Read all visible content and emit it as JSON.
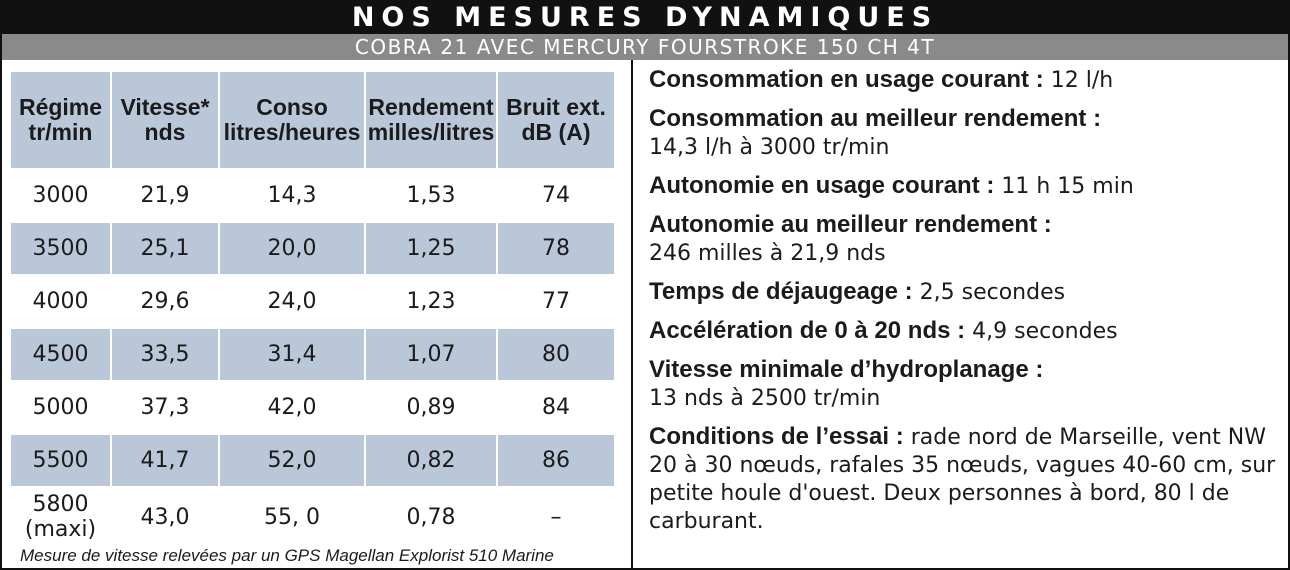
{
  "header": {
    "title": "NOS MESURES DYNAMIQUES",
    "subtitle": "COBRA 21 AVEC MERCURY FOURSTROKE 150 CH 4T"
  },
  "table": {
    "columns": [
      [
        "Régime",
        "tr/min"
      ],
      [
        "Vitesse*",
        "nds"
      ],
      [
        "Conso",
        "litres/heures"
      ],
      [
        "Rendement",
        "milles/litres"
      ],
      [
        "Bruit ext.",
        "dB (A)"
      ]
    ],
    "rows": [
      [
        "3000",
        "21,9",
        "14,3",
        "1,53",
        "74"
      ],
      [
        "3500",
        "25,1",
        "20,0",
        "1,25",
        "78"
      ],
      [
        "4000",
        "29,6",
        "24,0",
        "1,23",
        "77"
      ],
      [
        "4500",
        "33,5",
        "31,4",
        "1,07",
        "80"
      ],
      [
        "5000",
        "37,3",
        "42,0",
        "0,89",
        "84"
      ],
      [
        "5500",
        "41,7",
        "52,0",
        "0,82",
        "86"
      ]
    ],
    "last_row": {
      "regime_line1": "5800",
      "regime_line2": "(maxi)",
      "cells": [
        "43,0",
        "55, 0",
        "0,78",
        "–"
      ]
    },
    "footnote": "Mesure de vitesse relevées par un GPS Magellan Explorist 510 Marine",
    "shade_color": "#b9c7d9"
  },
  "stats": [
    {
      "label": "Consommation en usage courant :",
      "value": "12 l/h"
    },
    {
      "label": "Consommation au meilleur rendement :",
      "value": "14,3 l/h à 3000 tr/min"
    },
    {
      "label": "Autonomie en usage courant :",
      "value": "11 h 15 min"
    },
    {
      "label": "Autonomie au meilleur rendement :",
      "value": "246 milles à 21,9 nds"
    },
    {
      "label": "Temps de déjaugeage :",
      "value": "2,5 secondes"
    },
    {
      "label": "Accélération de 0 à 20 nds :",
      "value": "4,9 secondes"
    },
    {
      "label": "Vitesse minimale d’hydroplanage :",
      "value": "13 nds à 2500 tr/min"
    },
    {
      "label": "Conditions de l’essai :",
      "value": "rade nord de Marseille, vent NW 20 à 30 nœuds, rafales 35 nœuds, vagues 40-60 cm, sur petite houle d'ouest. Deux personnes à bord, 80 l de carburant."
    }
  ]
}
